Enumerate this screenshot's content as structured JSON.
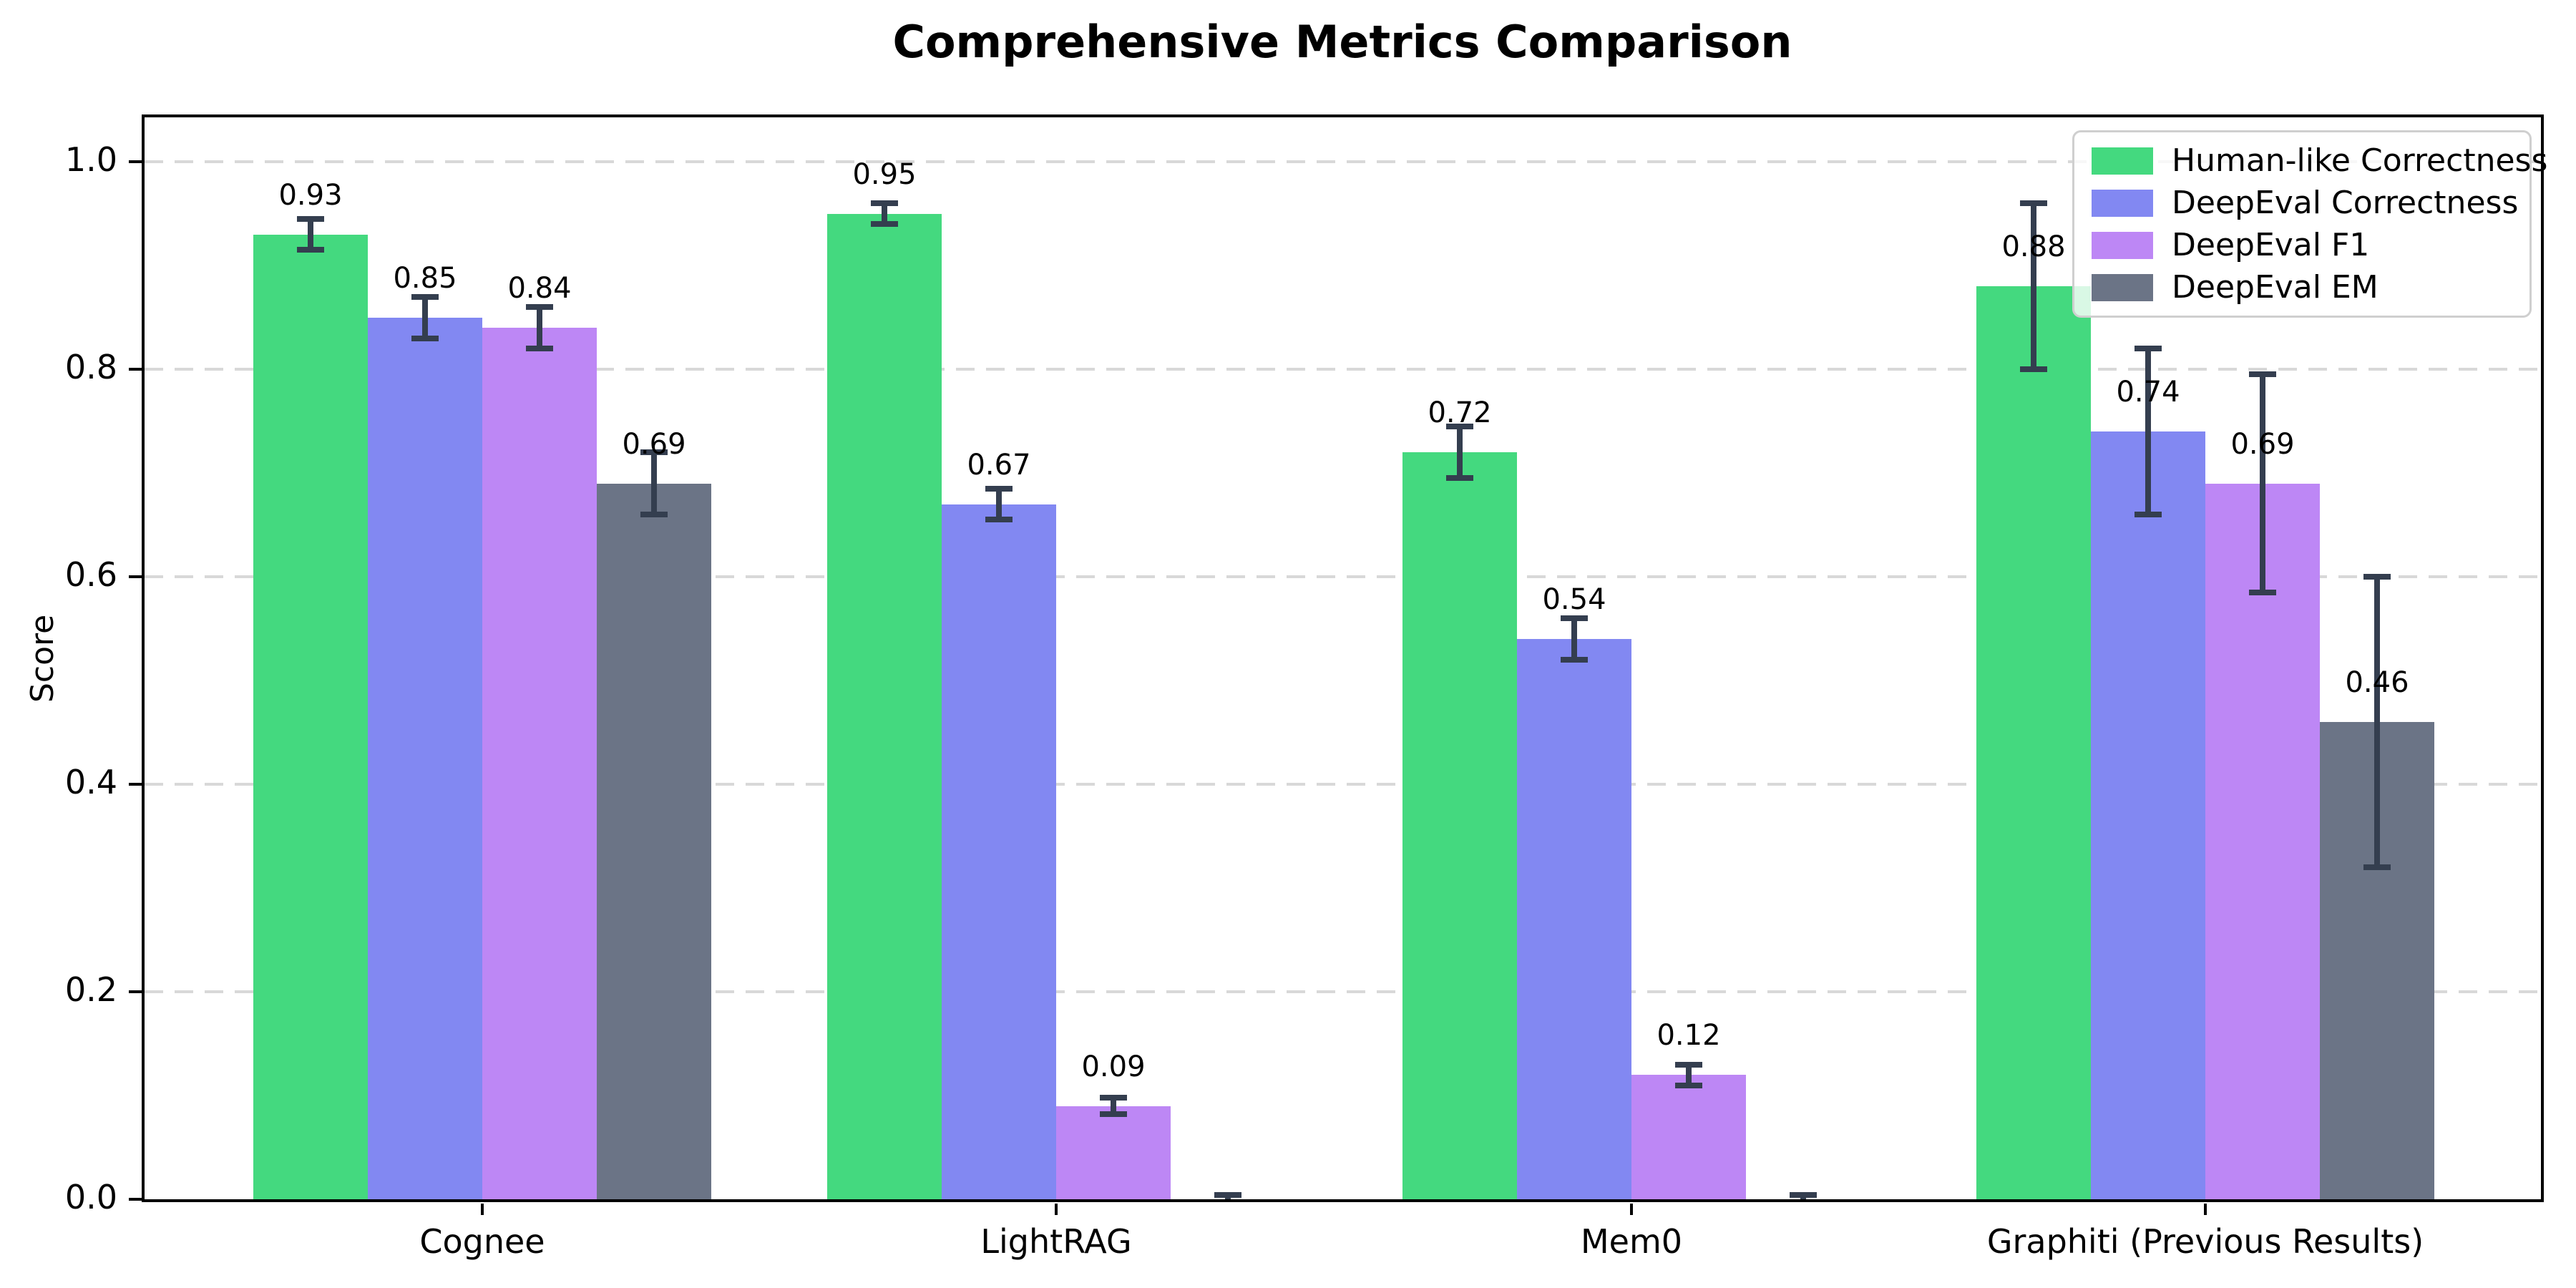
{
  "chart_data": {
    "type": "bar",
    "title": "Comprehensive Metrics Comparison",
    "ylabel": "Score",
    "xlabel": "",
    "categories": [
      "Cognee",
      "LightRAG",
      "Mem0",
      "Graphiti (Previous Results)"
    ],
    "series": [
      {
        "name": "Human-like Correctness",
        "color": "#44d97f",
        "values": [
          0.93,
          0.95,
          0.72,
          0.88
        ],
        "errors": [
          0.015,
          0.01,
          0.025,
          0.08
        ],
        "labels": [
          "0.93",
          "0.95",
          "0.72",
          "0.88"
        ]
      },
      {
        "name": "DeepEval Correctness",
        "color": "#8288f2",
        "values": [
          0.85,
          0.67,
          0.54,
          0.74
        ],
        "errors": [
          0.02,
          0.015,
          0.02,
          0.08
        ],
        "labels": [
          "0.85",
          "0.67",
          "0.54",
          "0.74"
        ]
      },
      {
        "name": "DeepEval F1",
        "color": "#bd87f5",
        "values": [
          0.84,
          0.09,
          0.12,
          0.69
        ],
        "errors": [
          0.02,
          0.008,
          0.01,
          0.105
        ],
        "labels": [
          "0.84",
          "0.09",
          "0.12",
          "0.69"
        ]
      },
      {
        "name": "DeepEval EM",
        "color": "#6b7486",
        "values": [
          0.69,
          0.0,
          0.0,
          0.46
        ],
        "errors": [
          0.03,
          0.004,
          0.004,
          0.14
        ],
        "labels": [
          "0.69",
          null,
          null,
          "0.46"
        ]
      }
    ],
    "ylim": [
      0,
      1.05
    ],
    "yticks": [
      "0.0",
      "0.2",
      "0.4",
      "0.6",
      "0.8",
      "1.0"
    ],
    "grid": "horizontal dashed, axis-below",
    "legend_position": "upper right",
    "error_bar_color": "#343e4f",
    "grid_color": "#d8d8d8"
  }
}
